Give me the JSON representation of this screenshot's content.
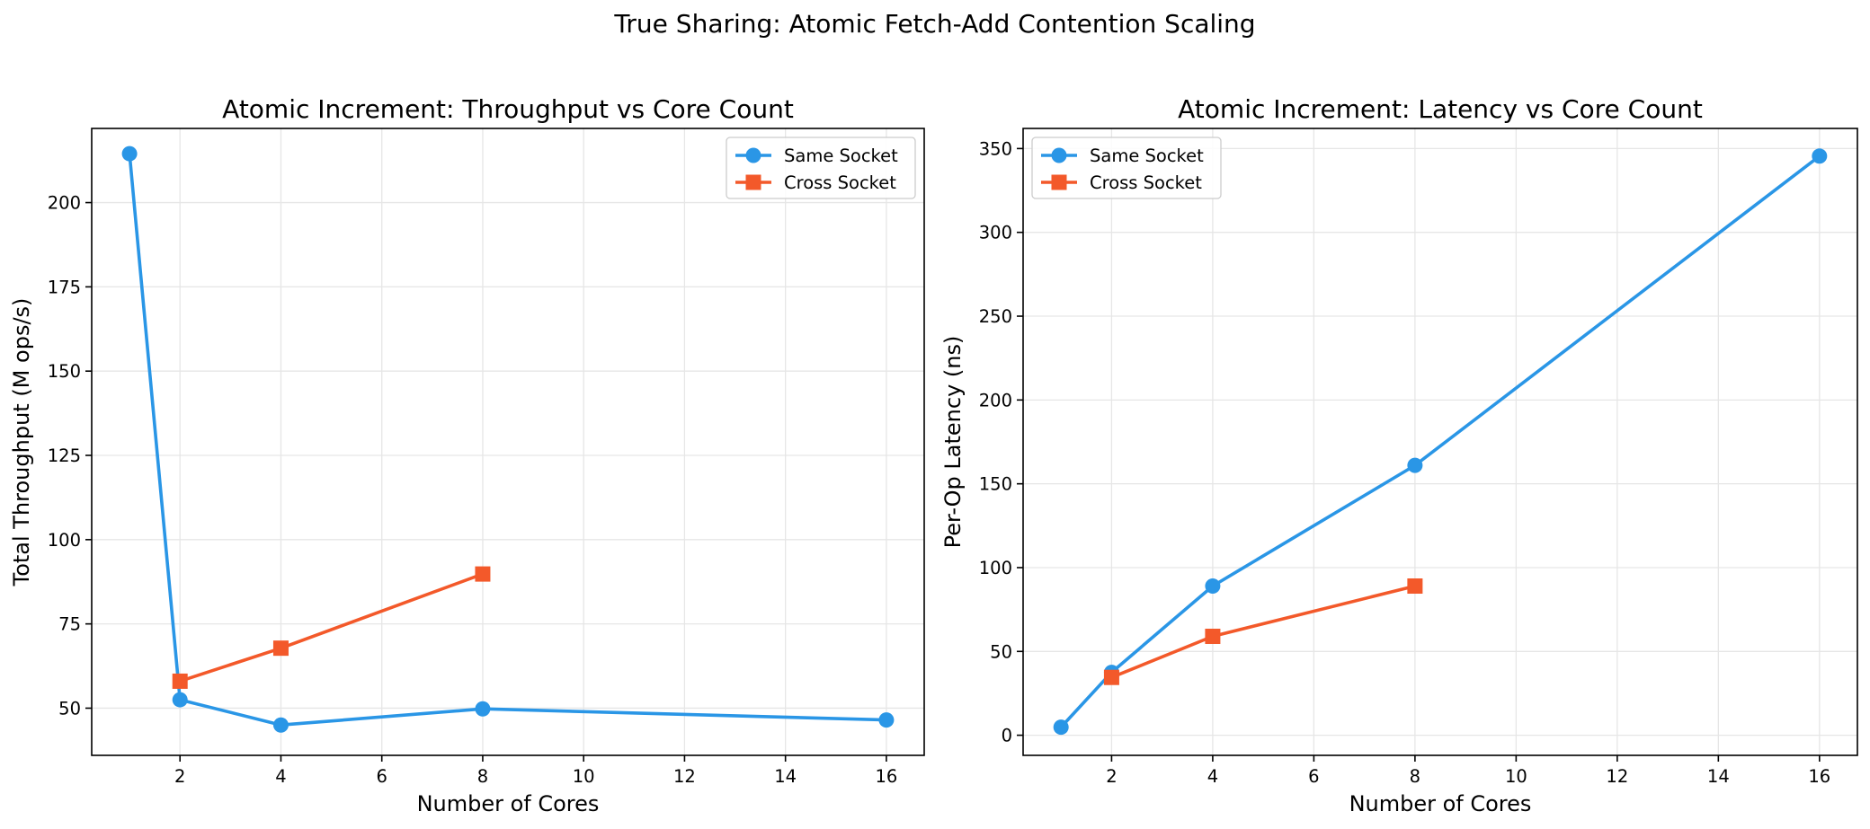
{
  "figure": {
    "suptitle": "True Sharing: Atomic Fetch-Add Contention Scaling"
  },
  "colors": {
    "same_socket": "#2a96e6",
    "cross_socket": "#f3592a"
  },
  "chart_data": [
    {
      "type": "line",
      "title": "Atomic Increment: Throughput vs Core Count",
      "xlabel": "Number of Cores",
      "ylabel": "Total Throughput (M ops/s)",
      "xlim": [
        0.25,
        16.75
      ],
      "ylim": [
        36,
        222
      ],
      "xticks": [
        2,
        4,
        6,
        8,
        10,
        12,
        14,
        16
      ],
      "yticks": [
        50,
        75,
        100,
        125,
        150,
        175,
        200
      ],
      "grid": true,
      "legend_position": "upper right",
      "series": [
        {
          "name": "Same Socket",
          "marker": "circle",
          "color": "#2a96e6",
          "x": [
            1,
            2,
            4,
            8,
            16
          ],
          "y": [
            214.5,
            52.5,
            45.0,
            49.8,
            46.5
          ]
        },
        {
          "name": "Cross Socket",
          "marker": "square",
          "color": "#f3592a",
          "x": [
            2,
            4,
            8
          ],
          "y": [
            58.0,
            67.8,
            89.8
          ]
        }
      ]
    },
    {
      "type": "line",
      "title": "Atomic Increment: Latency vs Core Count",
      "xlabel": "Number of Cores",
      "ylabel": "Per-Op Latency (ns)",
      "xlim": [
        0.25,
        16.75
      ],
      "ylim": [
        -12,
        362
      ],
      "xticks": [
        2,
        4,
        6,
        8,
        10,
        12,
        14,
        16
      ],
      "yticks": [
        0,
        50,
        100,
        150,
        200,
        250,
        300,
        350
      ],
      "grid": true,
      "legend_position": "upper left",
      "series": [
        {
          "name": "Same Socket",
          "marker": "circle",
          "color": "#2a96e6",
          "x": [
            1,
            2,
            4,
            8,
            16
          ],
          "y": [
            4.8,
            37.5,
            89.0,
            161.0,
            345.5
          ]
        },
        {
          "name": "Cross Socket",
          "marker": "square",
          "color": "#f3592a",
          "x": [
            2,
            4,
            8
          ],
          "y": [
            34.5,
            59.0,
            89.0
          ]
        }
      ]
    }
  ]
}
